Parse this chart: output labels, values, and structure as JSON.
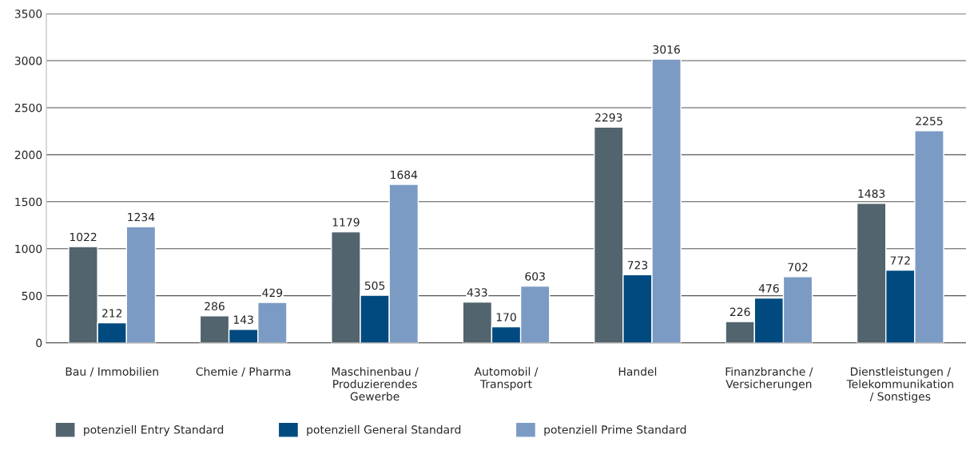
{
  "chart_data": {
    "type": "bar",
    "categories": [
      "Bau / Immobilien",
      "Chemie / Pharma",
      "Maschinenbau /\nProduzierendes\nGewerbe",
      "Automobil /\nTransport",
      "Handel",
      "Finanzbranche /\nVersicherungen",
      "Dienstleistungen /\nTelekommunikation\n/ Sonstiges"
    ],
    "series": [
      {
        "name": "potenziell Entry Standard",
        "color": "#52646d",
        "values": [
          1022,
          286,
          1179,
          433,
          2293,
          226,
          1483
        ]
      },
      {
        "name": "potenziell General Standard",
        "color": "#004a80",
        "values": [
          212,
          143,
          505,
          170,
          723,
          476,
          772
        ]
      },
      {
        "name": "potenziell Prime Standard",
        "color": "#7b9bc4",
        "values": [
          1234,
          429,
          1684,
          603,
          3016,
          702,
          2255
        ]
      }
    ],
    "ylim": [
      0,
      3500
    ],
    "yticks": [
      0,
      500,
      1000,
      1500,
      2000,
      2500,
      3000,
      3500
    ],
    "grid": "y",
    "legend": "bottom",
    "data_labels": true
  }
}
